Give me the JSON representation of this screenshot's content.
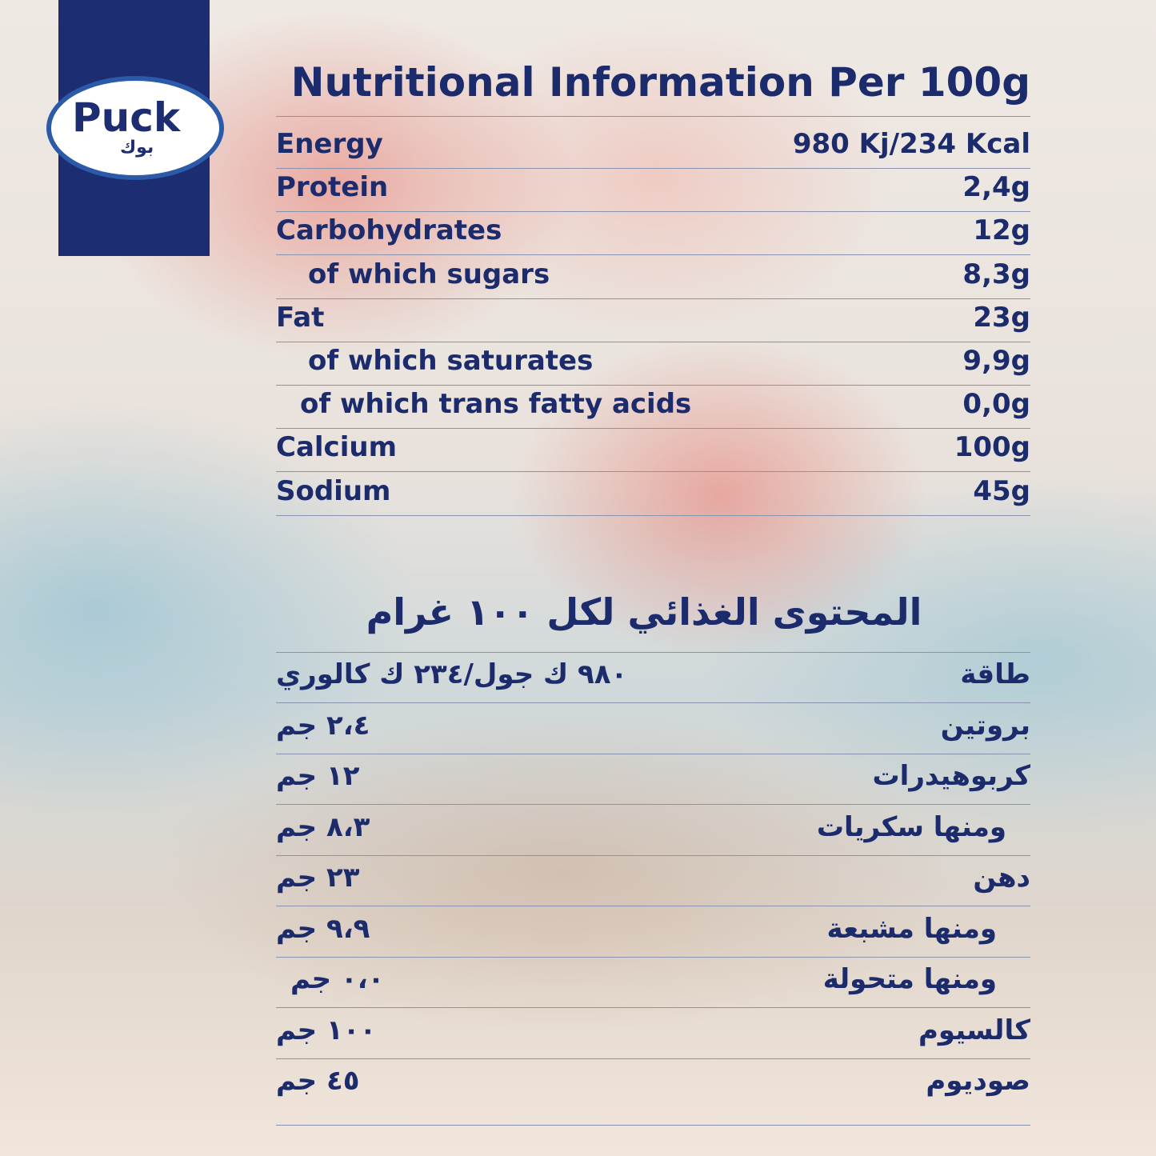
{
  "logo": {
    "brand": "Puck",
    "brand_arabic": "بوك"
  },
  "english": {
    "title": "Nutritional Information Per 100g",
    "rows": [
      [
        "Energy",
        "980 Kj/234 Kcal"
      ],
      [
        "Protein",
        "2,4g"
      ],
      [
        "Carbohydrates",
        "12g"
      ],
      [
        "of which sugars",
        "8,3g"
      ],
      [
        "Fat",
        "23g"
      ],
      [
        "of which saturates",
        "9,9g"
      ],
      [
        "of which trans fatty acids",
        "0,0g"
      ],
      [
        "Calcium",
        "100g"
      ],
      [
        "Sodium",
        "45g"
      ]
    ]
  },
  "arabic": {
    "title": "المحتوى الغذائي لكل ١٠٠ غرام",
    "rows": [
      [
        "طاقة",
        "٩٨٠ ك جول/٢٣٤ ك كالوري"
      ],
      [
        "بروتين",
        "٢،٤ جم"
      ],
      [
        "كربوهيدرات",
        "١٢ جم"
      ],
      [
        "ومنها سكريات",
        "٨،٣ جم"
      ],
      [
        "دهن",
        "٢٣ جم"
      ],
      [
        "ومنها مشبعة",
        "٩،٩ جم"
      ],
      [
        "ومنها متحولة",
        "٠،٠ جم"
      ],
      [
        "كالسيوم",
        "١٠٠ جم"
      ],
      [
        "صوديوم",
        "٤٥ جم"
      ]
    ]
  }
}
